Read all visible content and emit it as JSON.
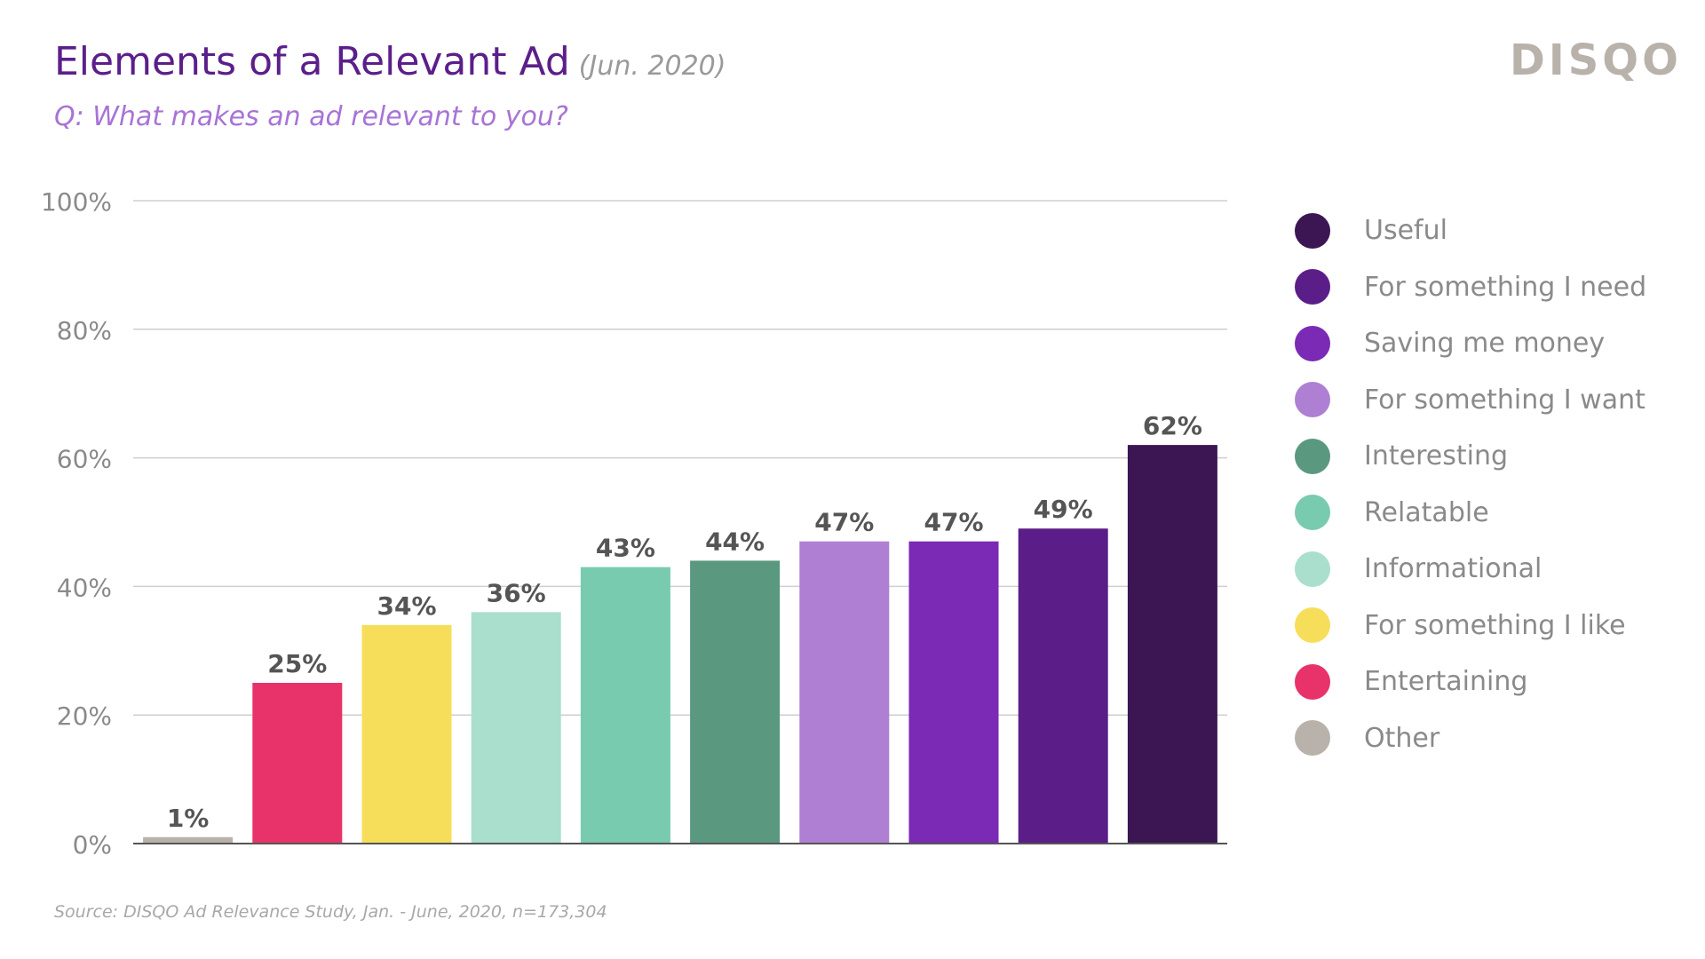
{
  "header": {
    "title": "Elements of a Relevant Ad",
    "date": "(Jun. 2020)",
    "question": "Q: What makes an ad relevant to you?",
    "brand": "DISQO"
  },
  "footer": {
    "source": "Source: DISQO Ad Relevance Study, Jan. - June, 2020, n=173,304"
  },
  "chart_data": {
    "type": "bar",
    "title": "Elements of a Relevant Ad",
    "xlabel": "",
    "ylabel": "",
    "ylim": [
      0,
      100
    ],
    "yticks": [
      {
        "value": 0,
        "label": "0%"
      },
      {
        "value": 20,
        "label": "20%"
      },
      {
        "value": 40,
        "label": "40%"
      },
      {
        "value": 60,
        "label": "60%"
      },
      {
        "value": 80,
        "label": "80%"
      },
      {
        "value": 100,
        "label": "100%"
      }
    ],
    "grid": true,
    "legend_position": "right",
    "categories": [
      "Other",
      "Entertaining",
      "For something I like",
      "Informational",
      "Relatable",
      "Interesting",
      "For something I want",
      "Saving me money",
      "For something I need",
      "Useful"
    ],
    "values": [
      1,
      25,
      34,
      36,
      43,
      44,
      47,
      47,
      49,
      62
    ],
    "value_labels": [
      "1%",
      "25%",
      "34%",
      "36%",
      "43%",
      "44%",
      "47%",
      "47%",
      "49%",
      "62%"
    ],
    "colors": [
      "#b8b2ab",
      "#e8336a",
      "#f7de5a",
      "#a9dfcc",
      "#78cbae",
      "#5a9880",
      "#ae7fd3",
      "#7a2ab5",
      "#5b1d88",
      "#3b1653"
    ]
  },
  "legend": {
    "items": [
      {
        "label": "Useful",
        "color": "#3b1653"
      },
      {
        "label": "For something I need",
        "color": "#5b1d88"
      },
      {
        "label": "Saving me money",
        "color": "#7a2ab5"
      },
      {
        "label": "For something I want",
        "color": "#ae7fd3"
      },
      {
        "label": "Interesting",
        "color": "#5a9880"
      },
      {
        "label": "Relatable",
        "color": "#78cbae"
      },
      {
        "label": "Informational",
        "color": "#a9dfcc"
      },
      {
        "label": "For something I like",
        "color": "#f7de5a"
      },
      {
        "label": "Entertaining",
        "color": "#e8336a"
      },
      {
        "label": "Other",
        "color": "#b8b2ab"
      }
    ]
  }
}
